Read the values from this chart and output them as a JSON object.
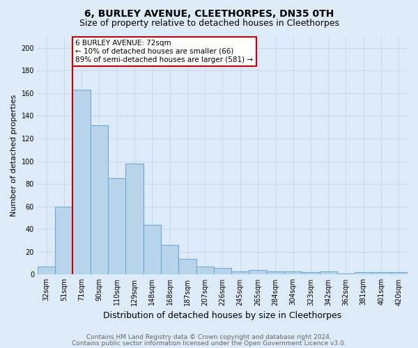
{
  "title": "6, BURLEY AVENUE, CLEETHORPES, DN35 0TH",
  "subtitle": "Size of property relative to detached houses in Cleethorpes",
  "xlabel": "Distribution of detached houses by size in Cleethorpes",
  "ylabel": "Number of detached properties",
  "categories": [
    "32sqm",
    "51sqm",
    "71sqm",
    "90sqm",
    "110sqm",
    "129sqm",
    "148sqm",
    "168sqm",
    "187sqm",
    "207sqm",
    "226sqm",
    "245sqm",
    "265sqm",
    "284sqm",
    "304sqm",
    "323sqm",
    "342sqm",
    "362sqm",
    "381sqm",
    "401sqm",
    "420sqm"
  ],
  "values": [
    7,
    60,
    163,
    132,
    85,
    98,
    44,
    26,
    14,
    7,
    6,
    3,
    4,
    3,
    3,
    2,
    3,
    1,
    2,
    2,
    2
  ],
  "bar_color": "#b8d4ea",
  "bar_edge_color": "#6aaad4",
  "red_line_index": 2,
  "red_line_x": 1.5,
  "red_line_color": "#cc0000",
  "annotation_text": "6 BURLEY AVENUE: 72sqm\n← 10% of detached houses are smaller (66)\n89% of semi-detached houses are larger (581) →",
  "annotation_box_color": "#ffffff",
  "annotation_box_edge_color": "#cc0000",
  "ylim": [
    0,
    210
  ],
  "yticks": [
    0,
    20,
    40,
    60,
    80,
    100,
    120,
    140,
    160,
    180,
    200
  ],
  "footer1": "Contains HM Land Registry data © Crown copyright and database right 2024.",
  "footer2": "Contains public sector information licensed under the Open Government Licence v3.0.",
  "bg_color": "#ddeaf7",
  "plot_bg_color": "#ddeaf7",
  "title_fontsize": 10,
  "subtitle_fontsize": 9,
  "xlabel_fontsize": 9,
  "ylabel_fontsize": 8,
  "tick_fontsize": 7,
  "footer_fontsize": 6.5,
  "annot_fontsize": 7.5
}
